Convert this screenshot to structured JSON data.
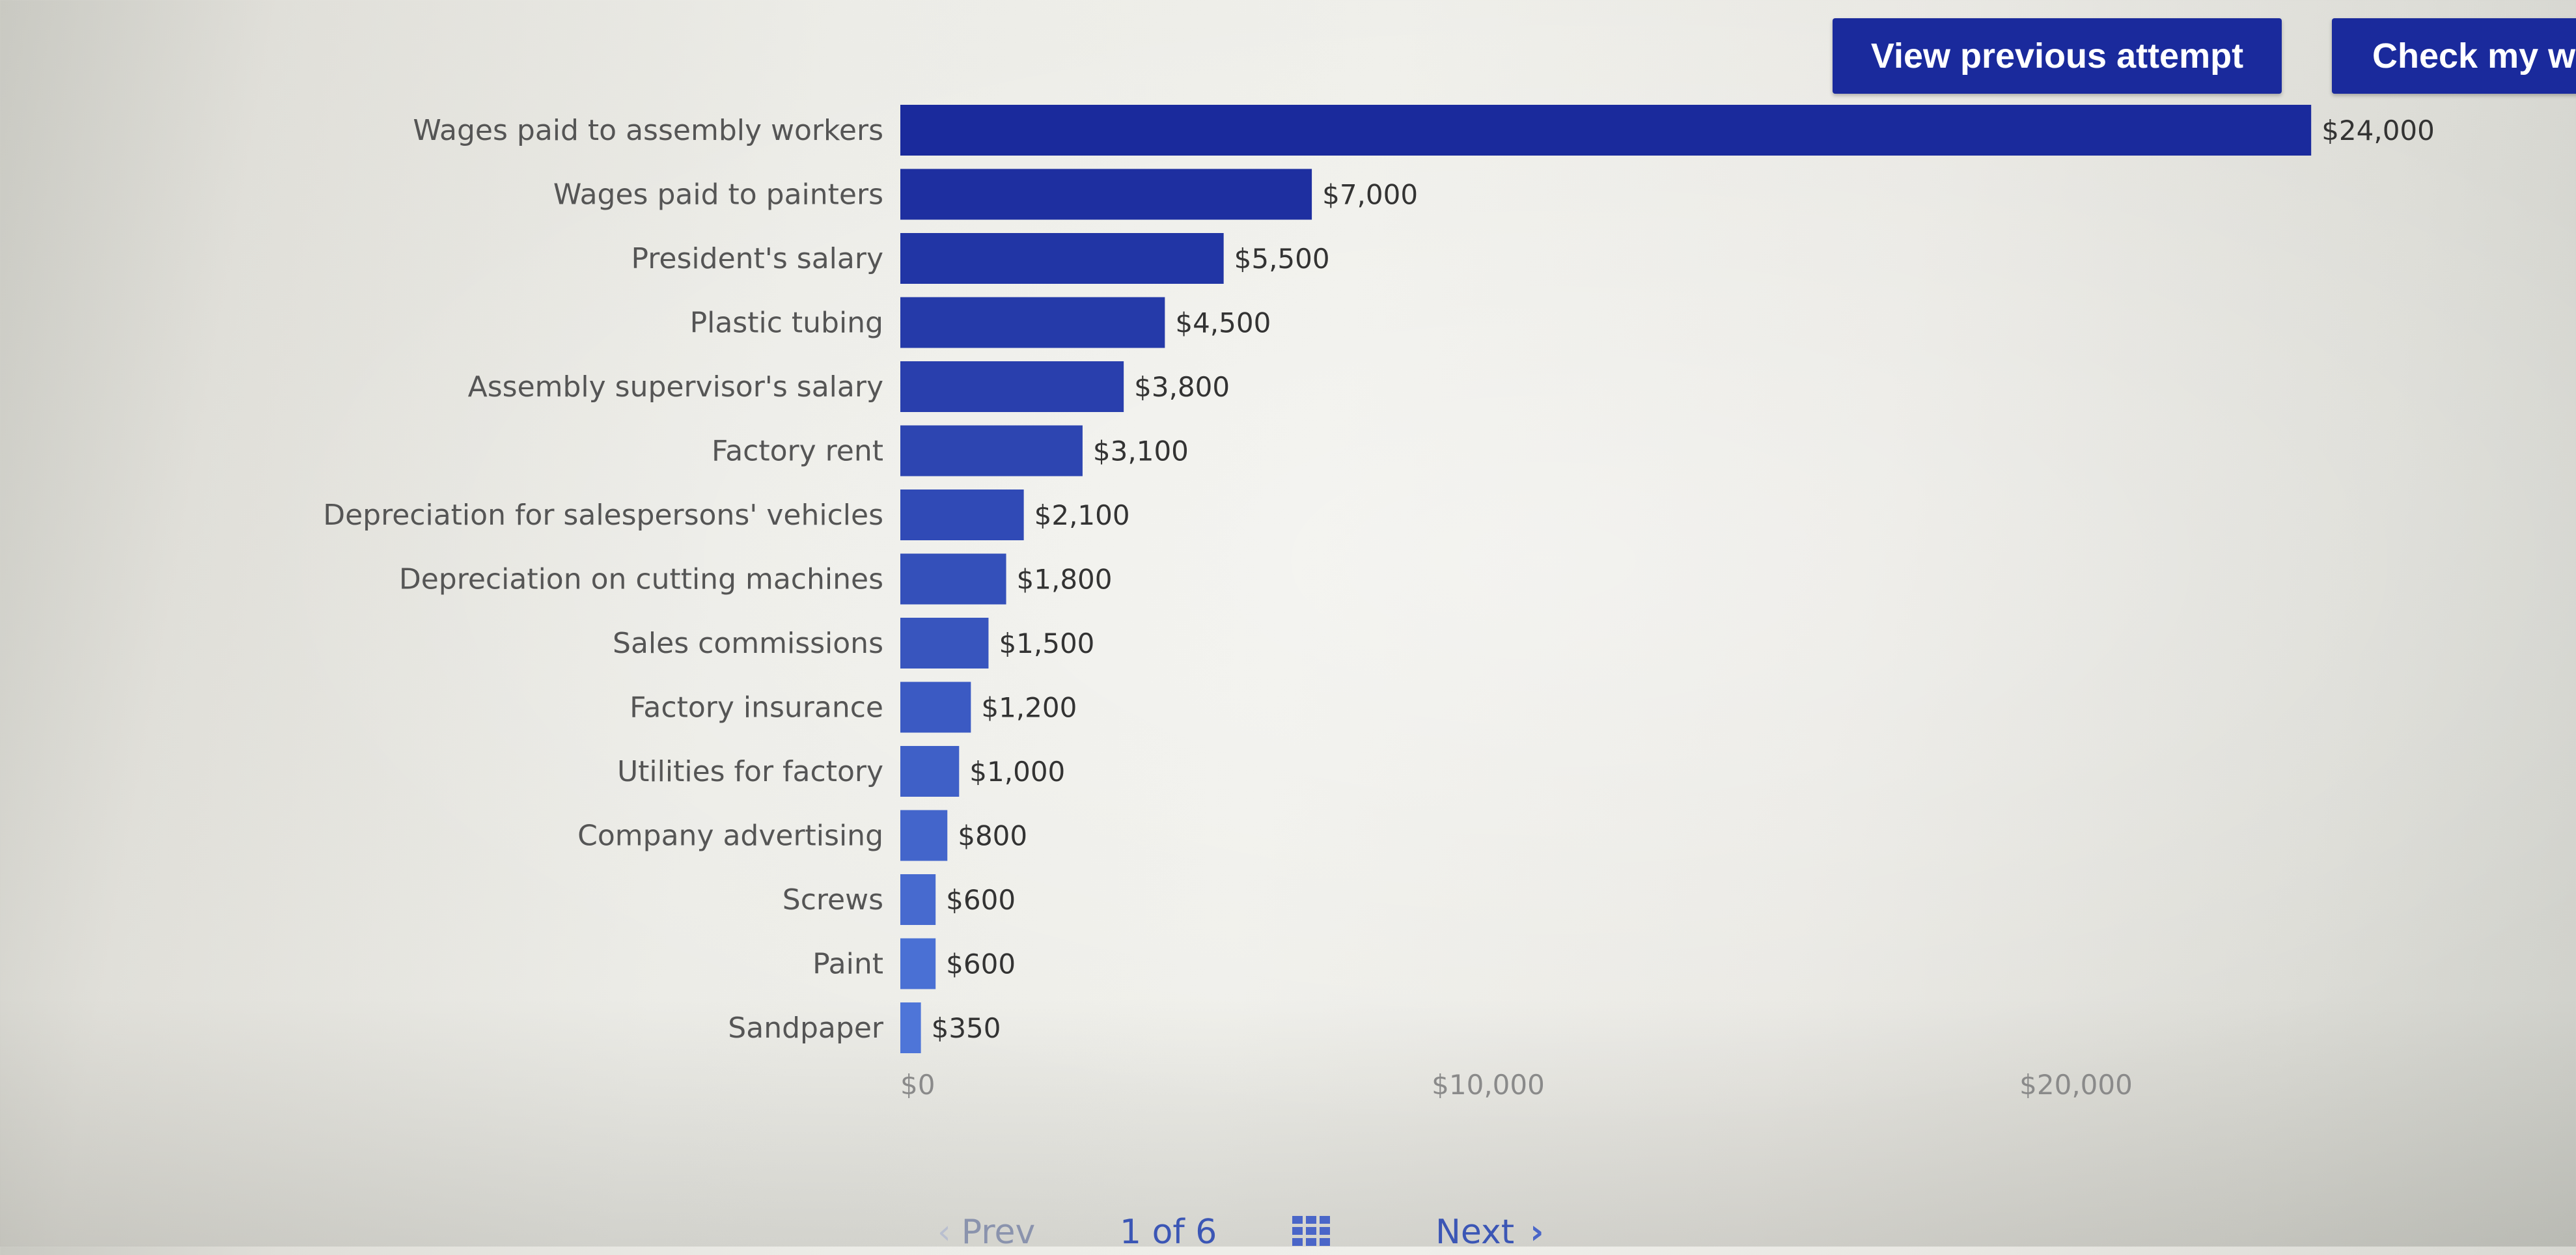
{
  "toolbar": {
    "view_previous_label": "View previous attempt",
    "check_work_label": "Check my w"
  },
  "pager": {
    "prev_label": "Prev",
    "page_label": "1 of 6",
    "next_label": "Next",
    "prev_chevron": "‹",
    "next_chevron": "›"
  },
  "colors": {
    "button_bg": "#1a2a9c",
    "bar_dark": "#1a2a9c",
    "bar_light": "#4e75d8"
  },
  "chart_data": {
    "type": "bar",
    "orientation": "horizontal",
    "categories": [
      "Wages paid to assembly workers",
      "Wages paid to painters",
      "President's salary",
      "Plastic tubing",
      "Assembly supervisor's salary",
      "Factory rent",
      "Depreciation for salespersons' vehicles",
      "Depreciation on cutting machines",
      "Sales commissions",
      "Factory insurance",
      "Utilities for factory",
      "Company advertising",
      "Screws",
      "Paint",
      "Sandpaper"
    ],
    "values": [
      24000,
      7000,
      5500,
      4500,
      3800,
      3100,
      2100,
      1800,
      1500,
      1200,
      1000,
      800,
      600,
      600,
      350
    ],
    "value_labels": [
      "$24,000",
      "$7,000",
      "$5,500",
      "$4,500",
      "$3,800",
      "$3,100",
      "$2,100",
      "$1,800",
      "$1,500",
      "$1,200",
      "$1,000",
      "$800",
      "$600",
      "$600",
      "$350"
    ],
    "x_ticks": [
      0,
      10000,
      20000
    ],
    "x_tick_labels": [
      "$0",
      "$10,000",
      "$20,000"
    ],
    "xlim": [
      0,
      24000
    ],
    "title": "",
    "xlabel": "",
    "ylabel": "",
    "grid": false
  }
}
